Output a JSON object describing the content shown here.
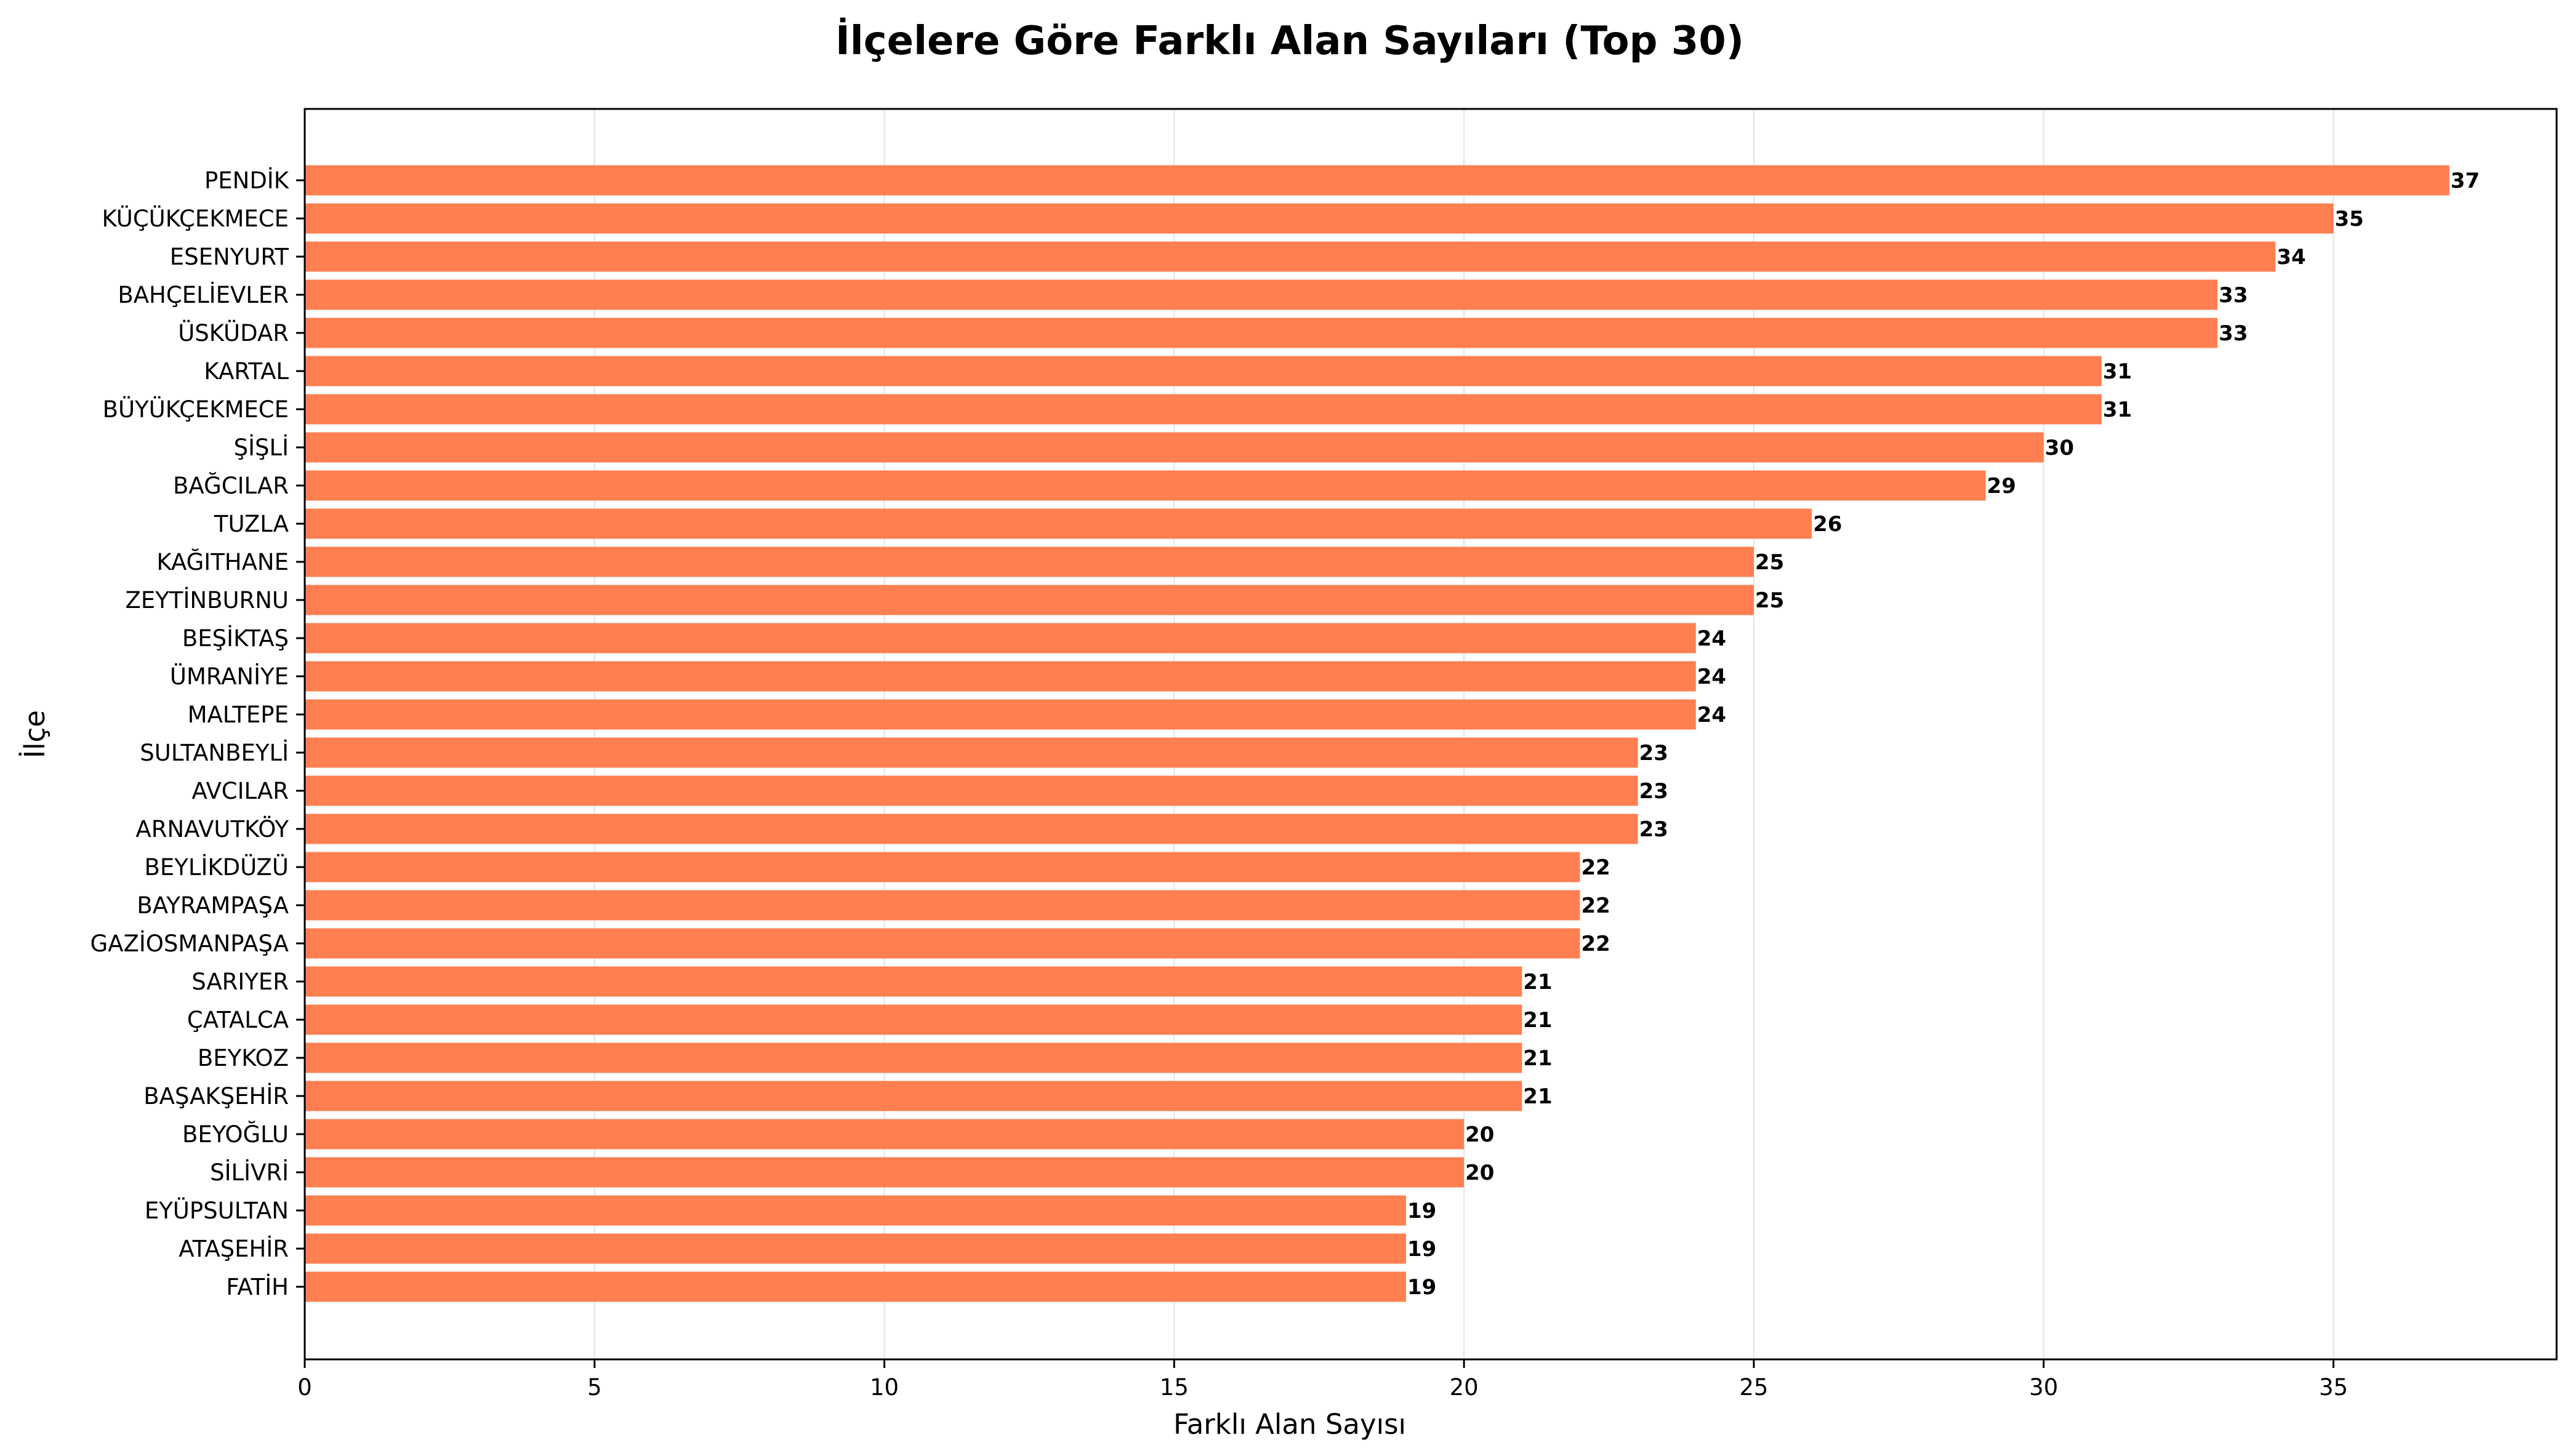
{
  "chart_data": {
    "type": "bar",
    "orientation": "horizontal",
    "title": "İlçelere Göre Farklı Alan Sayıları (Top 30)",
    "xlabel": "Farklı Alan Sayısı",
    "ylabel": "İlçe",
    "xlim": [
      0,
      38.85
    ],
    "xticks": [
      0,
      5,
      10,
      15,
      20,
      25,
      30,
      35
    ],
    "grid": "vertical",
    "bar_color": "#ff7f50",
    "categories": [
      "PENDİK",
      "KÜÇÜKÇEKMECE",
      "ESENYURT",
      "BAHÇELİEVLER",
      "ÜSKÜDAR",
      "KARTAL",
      "BÜYÜKÇEKMECE",
      "ŞİŞLİ",
      "BAĞCILAR",
      "TUZLA",
      "KAĞITHANE",
      "ZEYTİNBURNU",
      "BEŞİKTAŞ",
      "ÜMRANİYE",
      "MALTEPE",
      "SULTANBEYLİ",
      "AVCILAR",
      "ARNAVUTKÖY",
      "BEYLİKDÜZÜ",
      "BAYRAMPAŞA",
      "GAZİOSMANPAŞA",
      "SARIYER",
      "ÇATALCA",
      "BEYKOZ",
      "BAŞAKŞEHİR",
      "BEYOĞLU",
      "SİLİVRİ",
      "EYÜPSULTAN",
      "ATAŞEHİR",
      "FATİH"
    ],
    "values": [
      37,
      35,
      34,
      33,
      33,
      31,
      31,
      30,
      29,
      26,
      25,
      25,
      24,
      24,
      24,
      23,
      23,
      23,
      22,
      22,
      22,
      21,
      21,
      21,
      21,
      20,
      20,
      19,
      19,
      19
    ]
  }
}
